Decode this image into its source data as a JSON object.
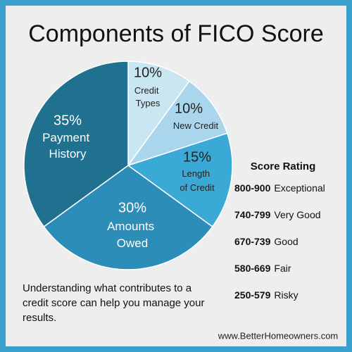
{
  "chart_data": {
    "type": "pie",
    "title": "Components of FICO Score",
    "categories": [
      "Credit Types",
      "New Credit",
      "Length of Credit",
      "Amounts Owed",
      "Payment History"
    ],
    "values": [
      10,
      10,
      15,
      30,
      35
    ],
    "value_labels": [
      "10%",
      "10%",
      "15%",
      "30%",
      "35%"
    ],
    "colors": [
      "#c9e6f3",
      "#a9d6ec",
      "#3aa9d6",
      "#2c8db8",
      "#20708f"
    ]
  },
  "score_rating": {
    "title": "Score Rating",
    "rows": [
      {
        "range": "800-900",
        "rating": "Exceptional"
      },
      {
        "range": "740-799",
        "rating": "Very Good"
      },
      {
        "range": "670-739",
        "rating": "Good"
      },
      {
        "range": "580-669",
        "rating": "Fair"
      },
      {
        "range": "250-579",
        "rating": "Risky"
      }
    ]
  },
  "note": "Understanding what contributes to a credit score can help you manage your results.",
  "website": "www.BetterHomeowners.com"
}
